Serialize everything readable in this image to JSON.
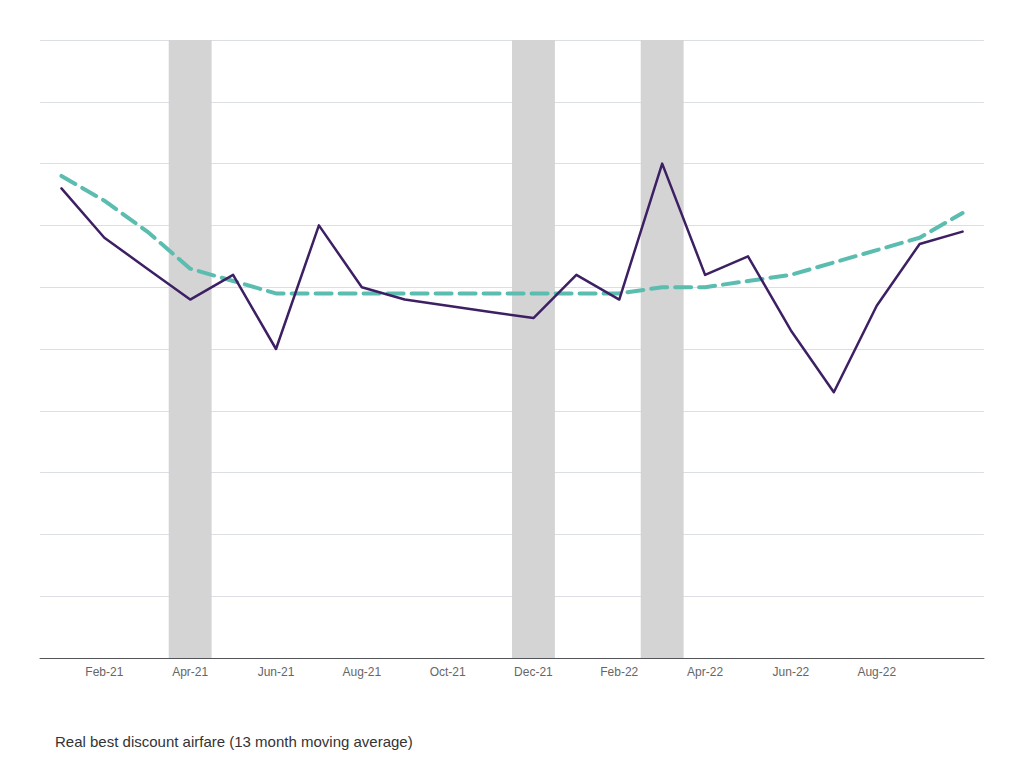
{
  "chart_data": {
    "type": "line",
    "title": "Real best discount airfare (13 month moving average)",
    "categories": [
      null,
      "Feb-21",
      null,
      "Apr-21",
      null,
      "Jun-21",
      null,
      "Aug-21",
      null,
      "Oct-21",
      null,
      "Dec-21",
      null,
      "Feb-22",
      null,
      "Apr-22",
      null,
      "Jun-22",
      null,
      "Aug-22",
      null,
      null
    ],
    "series": [
      {
        "color": "#3d2063",
        "line_style": "solid",
        "values": [
          76,
          68,
          63,
          58,
          62,
          50,
          70,
          60,
          58,
          57,
          56,
          55,
          62,
          58,
          80,
          62,
          65,
          53,
          43,
          57,
          67,
          69
        ]
      },
      {
        "color": "#5bbcb0",
        "line_style": "dashed",
        "values": [
          78,
          74,
          69,
          63,
          61,
          59,
          59,
          59,
          59,
          59,
          59,
          59,
          59,
          59,
          60,
          60,
          61,
          62,
          64,
          66,
          68,
          72
        ]
      }
    ],
    "shaded_positions": [
      3,
      11,
      14
    ],
    "shade_color": "#d4d4d4",
    "ylim": [
      0,
      100
    ],
    "yticks": [
      0,
      10,
      20,
      30,
      40,
      50,
      60,
      70,
      80,
      90,
      100
    ],
    "grid": true,
    "tick_labels": "x"
  }
}
